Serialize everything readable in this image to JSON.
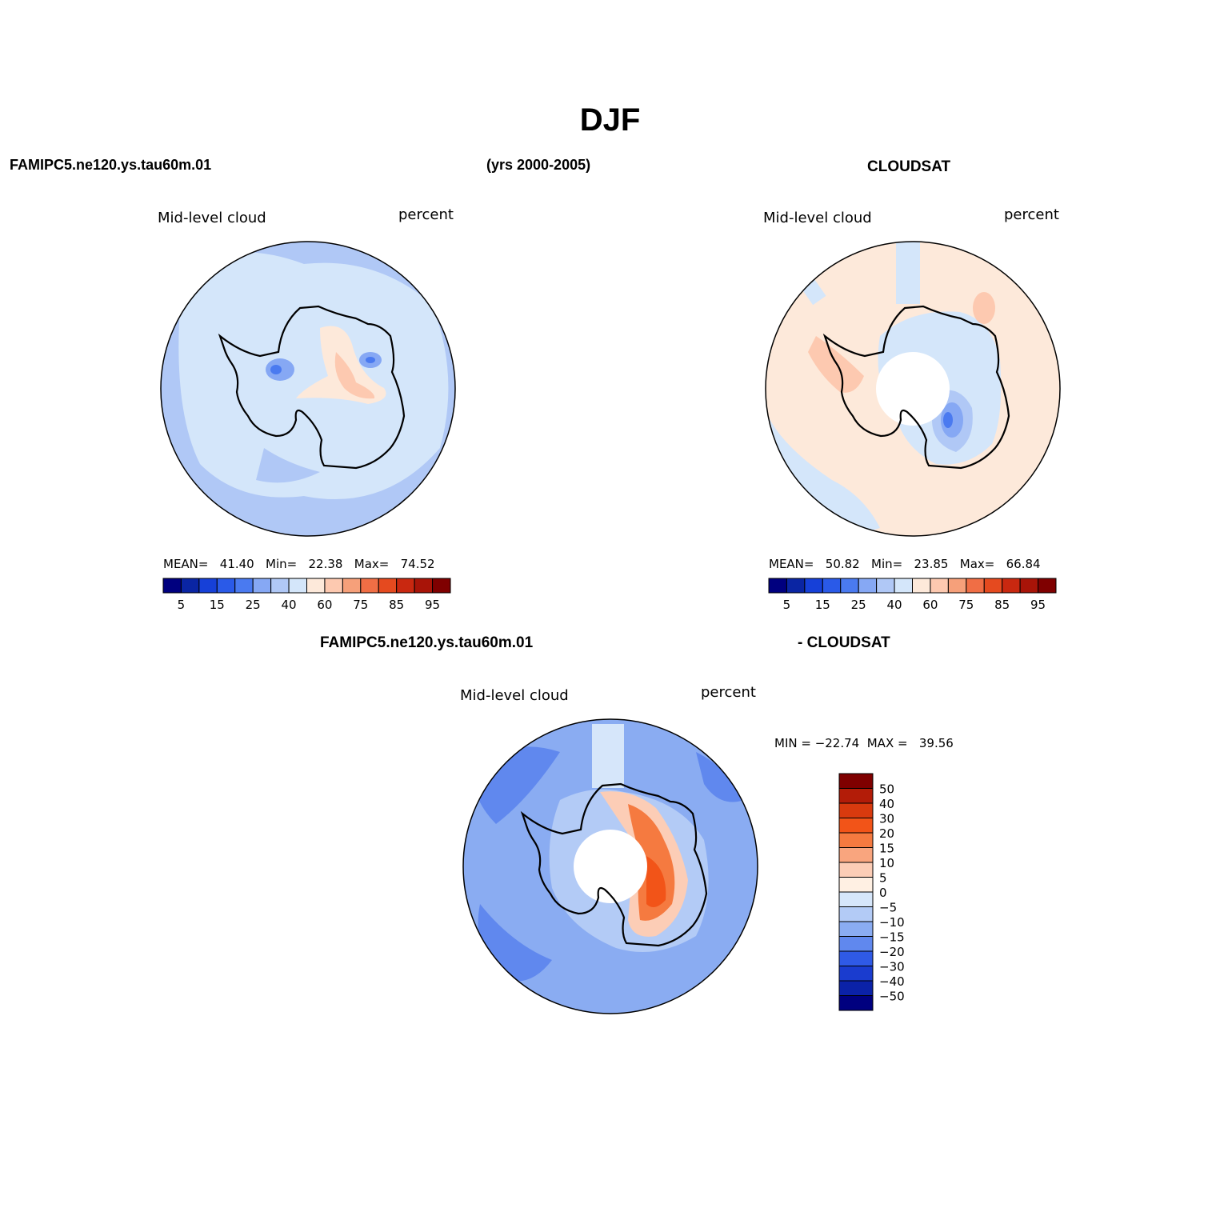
{
  "figure": {
    "title": "DJF",
    "model_name": "FAMIPC5.ne120.ys.tau60m.01",
    "years": "(yrs 2000-2005)",
    "obs_name": "CLOUDSAT",
    "diff_left": "FAMIPC5.ne120.ys.tau60m.01",
    "diff_right": "- CLOUDSAT"
  },
  "chart_data": [
    {
      "type": "heatmap",
      "projection": "south-polar-stereographic",
      "title": "Mid-level cloud",
      "units": "percent",
      "stats_text": "MEAN=   41.40   Min=   22.38   Max=   74.52",
      "stats": {
        "mean": 41.4,
        "min": 22.38,
        "max": 74.52
      },
      "colorbar": {
        "orientation": "horizontal",
        "tick_labels": [
          "5",
          "15",
          "25",
          "40",
          "60",
          "75",
          "85",
          "95"
        ],
        "colors": [
          "#00007f",
          "#0a25a3",
          "#1640d8",
          "#2a5ae8",
          "#4a7af0",
          "#86a8f4",
          "#b0c8f6",
          "#d4e6fa",
          "#fde9da",
          "#fdc9b0",
          "#f6a07a",
          "#f06e45",
          "#e54a1f",
          "#c92810",
          "#a81408",
          "#7f0000"
        ]
      },
      "regions": [
        {
          "name": "ocean-background",
          "value": 35
        },
        {
          "name": "antarctic-interior",
          "value": 40
        },
        {
          "name": "east-antarctic-plateau",
          "value": 60
        },
        {
          "name": "plateau-core",
          "value": 75
        },
        {
          "name": "weddell-low",
          "value": 25
        }
      ]
    },
    {
      "type": "heatmap",
      "projection": "south-polar-stereographic",
      "title": "Mid-level cloud",
      "units": "percent",
      "stats_text": "MEAN=   50.82   Min=   23.85   Max=   66.84",
      "stats": {
        "mean": 50.82,
        "min": 23.85,
        "max": 66.84
      },
      "colorbar": {
        "orientation": "horizontal",
        "tick_labels": [
          "5",
          "15",
          "25",
          "40",
          "60",
          "75",
          "85",
          "95"
        ],
        "colors": [
          "#00007f",
          "#0a25a3",
          "#1640d8",
          "#2a5ae8",
          "#4a7af0",
          "#86a8f4",
          "#b0c8f6",
          "#d4e6fa",
          "#fde9da",
          "#fdc9b0",
          "#f6a07a",
          "#f06e45",
          "#e54a1f",
          "#c92810",
          "#a81408",
          "#7f0000"
        ]
      },
      "regions": [
        {
          "name": "ocean-background",
          "value": 55
        },
        {
          "name": "pacific-sector",
          "value": 40
        },
        {
          "name": "antarctic-interior",
          "value": 40
        },
        {
          "name": "east-antarctic-low",
          "value": 25
        },
        {
          "name": "pole-missing",
          "value": null
        }
      ]
    },
    {
      "type": "heatmap",
      "projection": "south-polar-stereographic",
      "title": "Mid-level cloud",
      "units": "percent",
      "stats_text": "MIN = −22.74  MAX =   39.56",
      "stats": {
        "min": -22.74,
        "max": 39.56
      },
      "colorbar": {
        "orientation": "vertical",
        "tick_labels": [
          "50",
          "40",
          "30",
          "20",
          "15",
          "10",
          "5",
          "0",
          "−5",
          "−10",
          "−15",
          "−20",
          "−30",
          "−40",
          "−50"
        ],
        "colors": [
          "#7f0000",
          "#b31c08",
          "#d93a0e",
          "#f25418",
          "#f57a40",
          "#f9a57e",
          "#fccdb6",
          "#fff0e3",
          "#d6e6fa",
          "#b3cbf6",
          "#8aacf2",
          "#6088ee",
          "#2f5ae6",
          "#1a3ccf",
          "#0b22a8",
          "#00007f"
        ]
      },
      "regions": [
        {
          "name": "ocean-background",
          "value": -15
        },
        {
          "name": "coastal-band",
          "value": -5
        },
        {
          "name": "east-antarctic-positive",
          "value": 20
        },
        {
          "name": "positive-core",
          "value": 30
        },
        {
          "name": "pole-missing",
          "value": null
        }
      ]
    }
  ]
}
